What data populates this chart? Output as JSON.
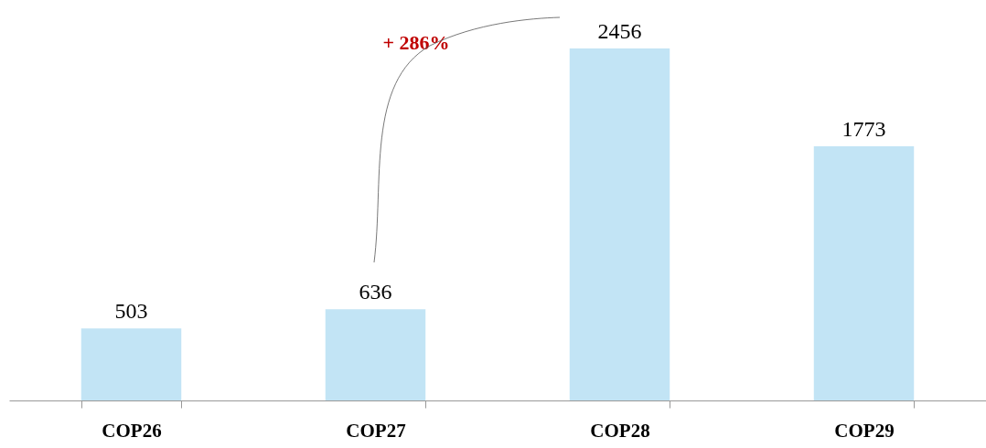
{
  "chart_data": {
    "type": "bar",
    "categories": [
      "COP26",
      "COP27",
      "COP28",
      "COP29"
    ],
    "values": [
      503,
      636,
      2456,
      1773
    ],
    "color": "#c2e4f5",
    "data_labels": true,
    "annotations": [
      "+ 286%"
    ]
  }
}
